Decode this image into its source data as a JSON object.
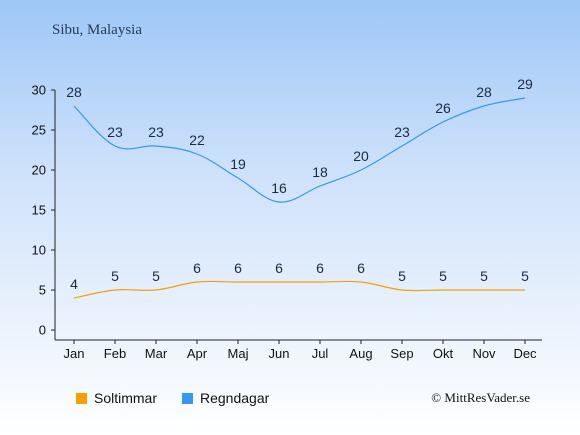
{
  "title": "Sibu, Malaysia",
  "credit": "© MittResVader.se",
  "chart_data": {
    "type": "line",
    "categories": [
      "Jan",
      "Feb",
      "Mar",
      "Apr",
      "Maj",
      "Jun",
      "Jul",
      "Aug",
      "Sep",
      "Okt",
      "Nov",
      "Dec"
    ],
    "ylim": [
      0,
      30
    ],
    "yticks": [
      0,
      5,
      10,
      15,
      20,
      25,
      30
    ],
    "series": [
      {
        "name": "Soltimmar",
        "color": "#f5a000",
        "values": [
          4,
          5,
          5,
          6,
          6,
          6,
          6,
          6,
          5,
          5,
          5,
          5
        ]
      },
      {
        "name": "Regndagar",
        "color": "#3399ee",
        "values": [
          28,
          23,
          23,
          22,
          19,
          16,
          18,
          20,
          23,
          26,
          28,
          29
        ]
      }
    ],
    "legend_position": "bottom-left"
  }
}
